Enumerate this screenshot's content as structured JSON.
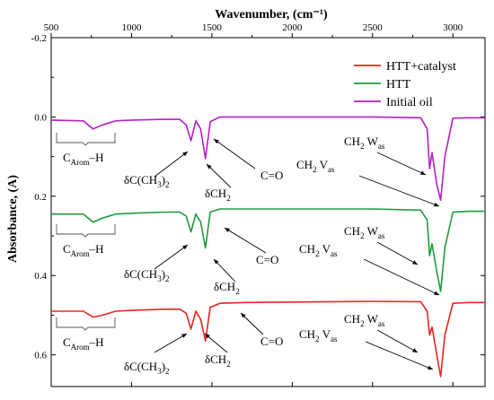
{
  "chart_data": {
    "type": "line",
    "xlabel": "Wavenumber, (cm⁻¹)",
    "ylabel": "Absorbance, (A)",
    "xlim": [
      500,
      3200
    ],
    "ylim": [
      -0.2,
      0.68
    ],
    "y_inverted": true,
    "x_ticks": [
      "500",
      "1000",
      "1500",
      "2000",
      "2500",
      "3000"
    ],
    "y_ticks": [
      "-0.2",
      "0.0",
      "0.2",
      "0.4",
      "0.6"
    ],
    "legend_position": "top-right",
    "colors": {
      "HTT+catalyst": "#e8251f",
      "HTT": "#1f9a3c",
      "Initial oil": "#b41fc4",
      "axis": "#000000"
    },
    "series": [
      {
        "name": "HTT+catalyst",
        "color": "#e8251f",
        "x": [
          500,
          700,
          760,
          820,
          900,
          1000,
          1200,
          1300,
          1340,
          1370,
          1400,
          1430,
          1460,
          1490,
          1550,
          1700,
          2000,
          2500,
          2800,
          2840,
          2855,
          2870,
          2900,
          2924,
          2950,
          3000,
          3100,
          3200
        ],
        "y": [
          0.49,
          0.49,
          0.505,
          0.5,
          0.49,
          0.488,
          0.485,
          0.485,
          0.495,
          0.535,
          0.49,
          0.51,
          0.565,
          0.48,
          0.47,
          0.468,
          0.467,
          0.465,
          0.466,
          0.49,
          0.55,
          0.53,
          0.6,
          0.655,
          0.55,
          0.47,
          0.468,
          0.468
        ]
      },
      {
        "name": "HTT",
        "color": "#1f9a3c",
        "x": [
          500,
          700,
          760,
          820,
          900,
          1000,
          1200,
          1300,
          1340,
          1370,
          1400,
          1430,
          1460,
          1490,
          1550,
          1700,
          2000,
          2500,
          2800,
          2840,
          2855,
          2870,
          2900,
          2924,
          2950,
          3000,
          3100,
          3200
        ],
        "y": [
          0.245,
          0.245,
          0.265,
          0.255,
          0.245,
          0.243,
          0.24,
          0.24,
          0.25,
          0.29,
          0.245,
          0.265,
          0.33,
          0.24,
          0.232,
          0.232,
          0.232,
          0.232,
          0.235,
          0.26,
          0.35,
          0.32,
          0.39,
          0.44,
          0.33,
          0.24,
          0.238,
          0.238
        ]
      },
      {
        "name": "Initial oil",
        "color": "#b41fc4",
        "x": [
          500,
          700,
          760,
          820,
          900,
          1000,
          1200,
          1300,
          1340,
          1370,
          1400,
          1430,
          1460,
          1490,
          1550,
          1700,
          2000,
          2500,
          2800,
          2840,
          2855,
          2870,
          2900,
          2924,
          2950,
          3000,
          3100,
          3200
        ],
        "y": [
          0.008,
          0.01,
          0.03,
          0.02,
          0.01,
          0.008,
          0.006,
          0.006,
          0.02,
          0.06,
          0.01,
          0.03,
          0.105,
          0.012,
          0.0,
          0.0,
          0.0,
          0.0,
          0.002,
          0.03,
          0.13,
          0.09,
          0.17,
          0.21,
          0.1,
          0.003,
          0.002,
          0.002
        ]
      }
    ],
    "annotations": {
      "c_arom": {
        "main": "C",
        "sub": "Arom",
        "tail": "–H"
      },
      "dc": {
        "main": "δC(CH",
        "sub": "3",
        "tail": ")",
        "sub2": "2"
      },
      "dch2": {
        "main": "δCH",
        "sub": "2"
      },
      "co": {
        "main": "C=O"
      },
      "vas": {
        "main": "CH",
        "sub": "2",
        "tail": " V",
        "sub2": "as"
      },
      "was": {
        "main": "CH",
        "sub": "2",
        "tail": " W",
        "sub2": "as"
      }
    }
  }
}
